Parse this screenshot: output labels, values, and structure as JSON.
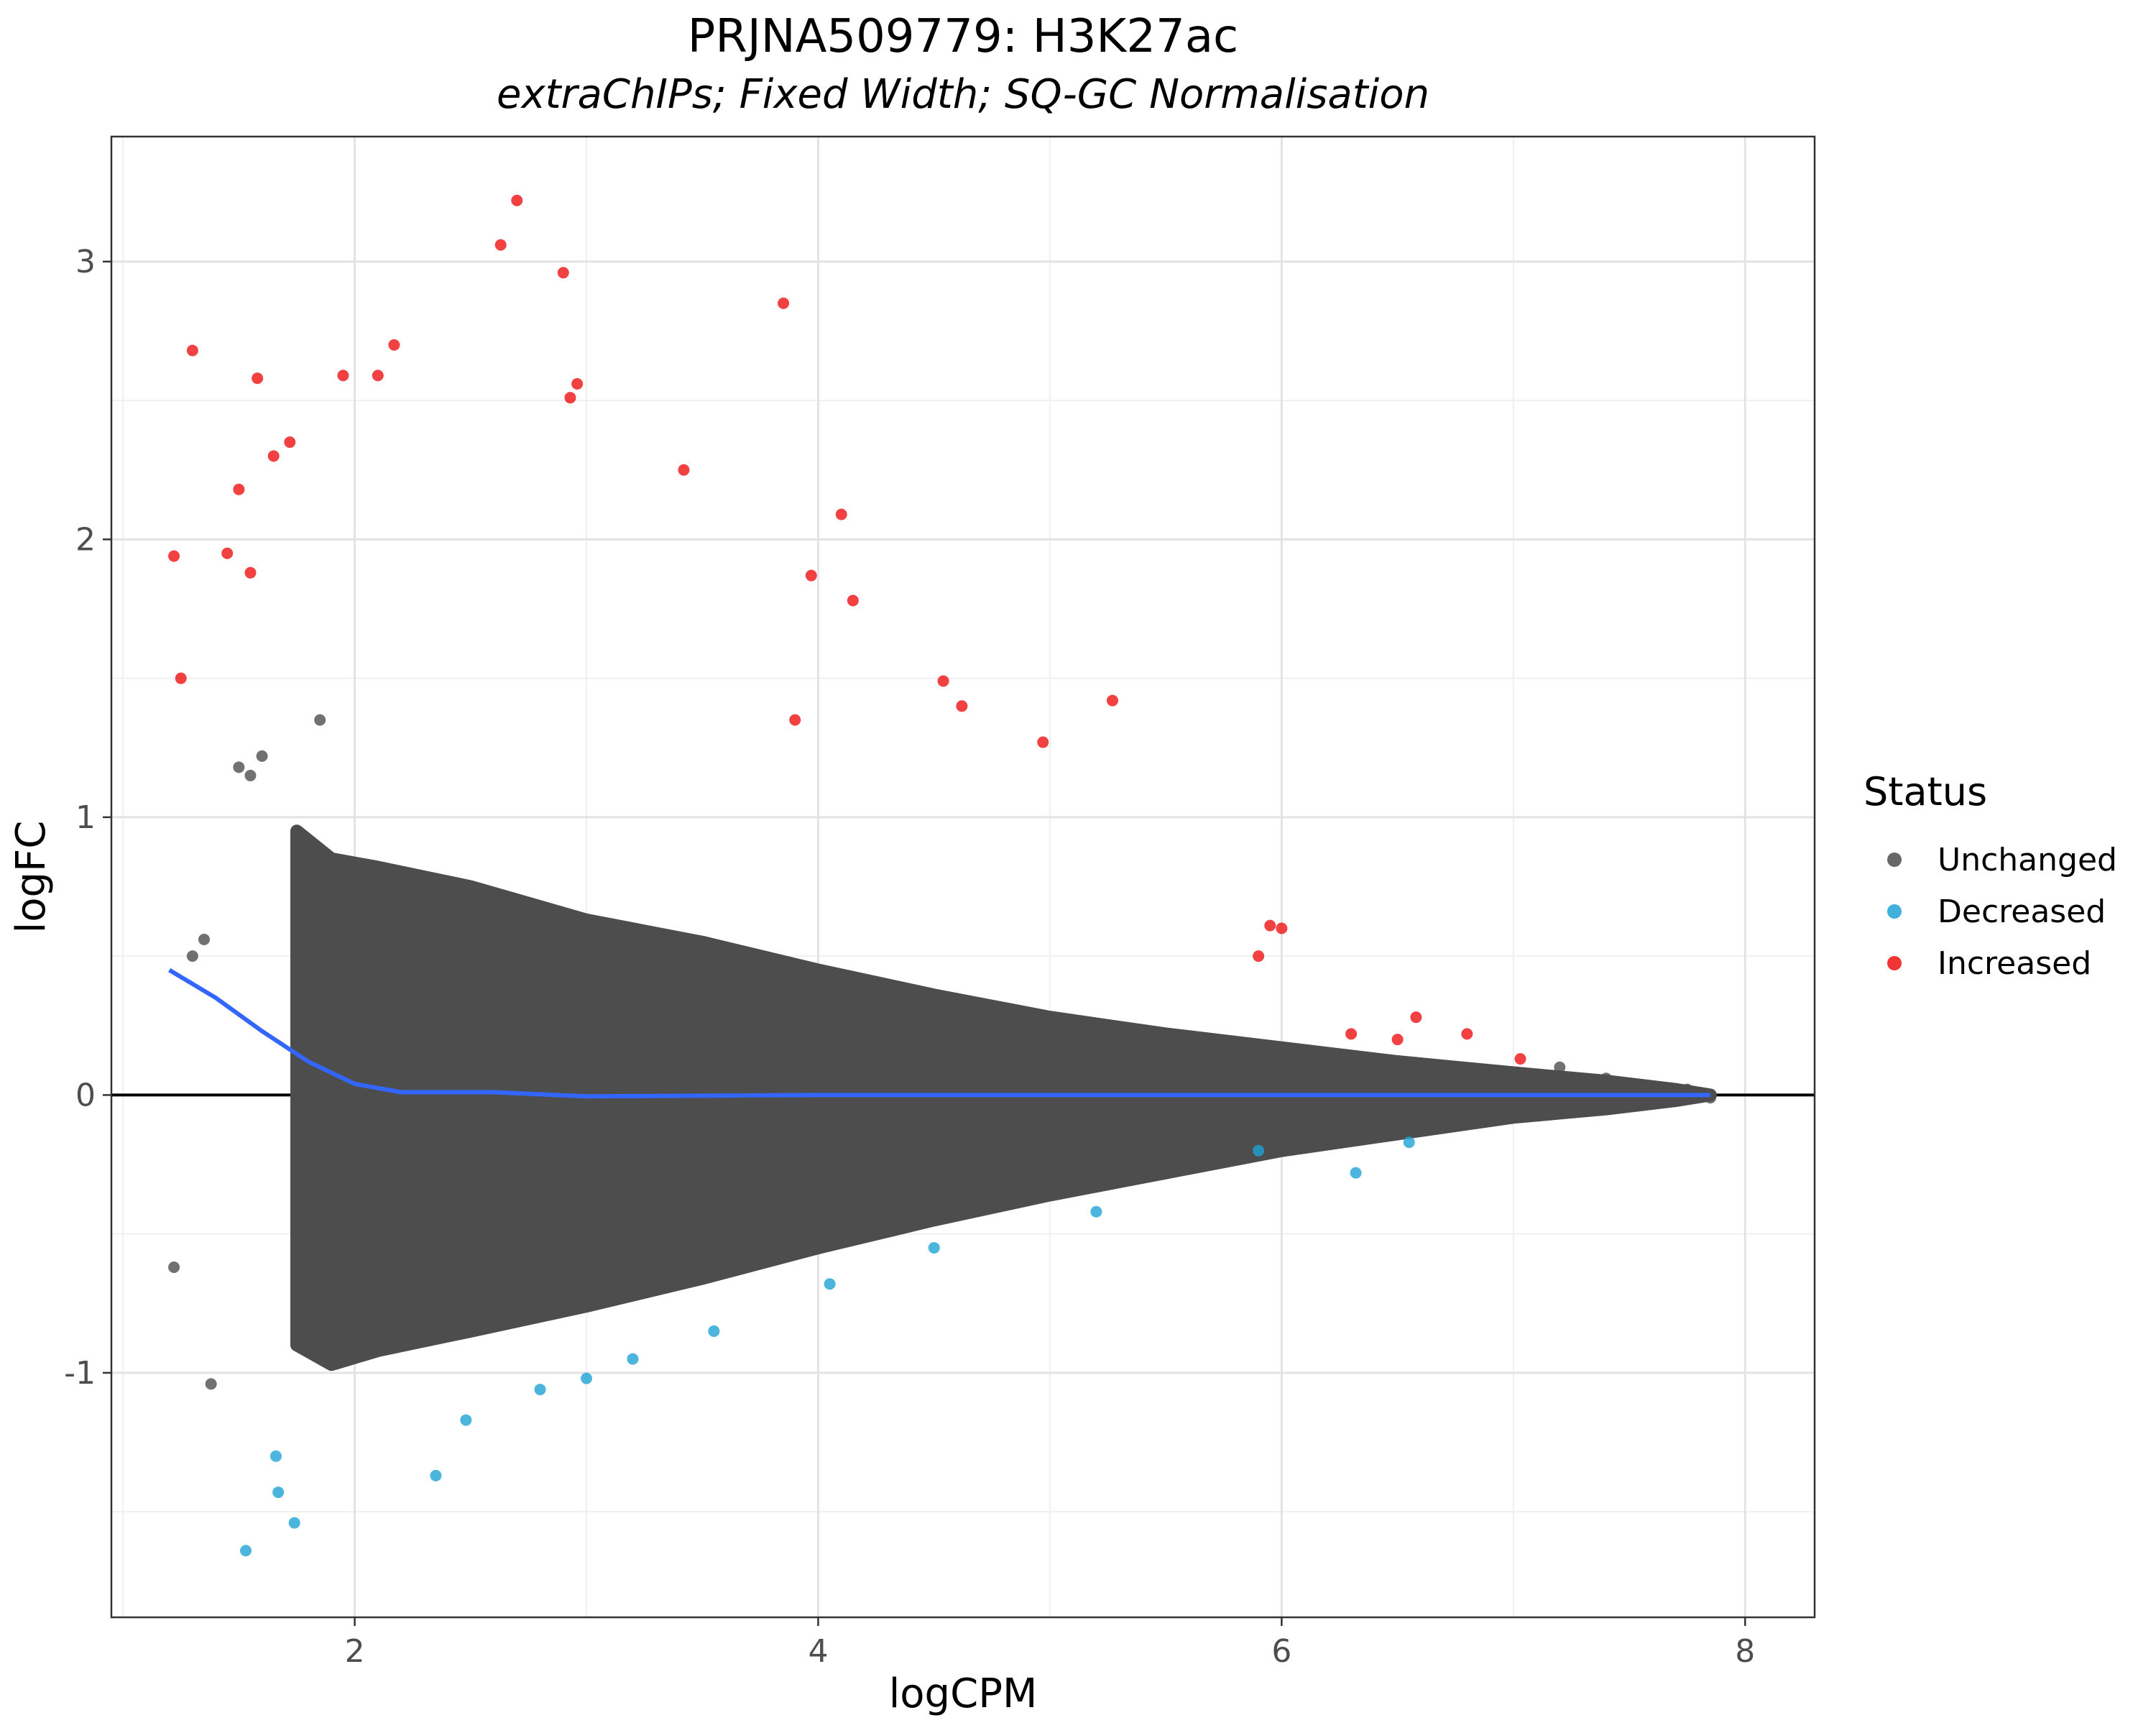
{
  "chart_data": {
    "type": "scatter",
    "title": "PRJNA509779: H3K27ac",
    "subtitle": "extraChIPs; Fixed Width; SQ-GC Normalisation",
    "xlabel": "logCPM",
    "ylabel": "logFC",
    "xlim": [
      0.95,
      8.3
    ],
    "ylim": [
      -1.88,
      3.45
    ],
    "x_ticks": [
      "2",
      "4",
      "6",
      "8"
    ],
    "y_ticks": [
      "-1",
      "0",
      "1",
      "2",
      "3"
    ],
    "x_tick_values": [
      2,
      4,
      6,
      8
    ],
    "y_tick_values": [
      -1,
      0,
      1,
      2,
      3
    ],
    "x_minor_values": [
      1,
      3,
      5,
      7
    ],
    "y_minor_values": [
      -1.5,
      -0.5,
      0.5,
      1.5,
      2.5
    ],
    "grid": true,
    "reference_line_y": 0,
    "legend": {
      "title": "Status",
      "position": "right",
      "entries": [
        "Unchanged",
        "Decreased",
        "Increased"
      ]
    },
    "colors": {
      "Unchanged": "#4d4d4d",
      "Decreased": "#1fa3d6",
      "Increased": "#ee1111",
      "trend": "#3366ff",
      "zero_line": "#000000"
    },
    "series": [
      {
        "name": "Increased",
        "points": [
          [
            1.22,
            1.94
          ],
          [
            1.25,
            1.5
          ],
          [
            1.3,
            2.68
          ],
          [
            1.45,
            1.95
          ],
          [
            1.5,
            2.18
          ],
          [
            1.55,
            1.88
          ],
          [
            1.58,
            2.58
          ],
          [
            1.65,
            2.3
          ],
          [
            1.72,
            2.35
          ],
          [
            1.95,
            2.59
          ],
          [
            2.1,
            2.59
          ],
          [
            2.17,
            2.7
          ],
          [
            2.7,
            3.22
          ],
          [
            2.63,
            3.06
          ],
          [
            2.9,
            2.96
          ],
          [
            3.85,
            2.85
          ],
          [
            2.93,
            2.51
          ],
          [
            2.96,
            2.56
          ],
          [
            3.42,
            2.25
          ],
          [
            4.1,
            2.09
          ],
          [
            4.15,
            1.78
          ],
          [
            3.97,
            1.87
          ],
          [
            5.27,
            1.42
          ],
          [
            4.97,
            1.27
          ],
          [
            4.54,
            1.49
          ],
          [
            4.62,
            1.4
          ],
          [
            3.9,
            1.35
          ],
          [
            6.58,
            0.28
          ],
          [
            6.5,
            0.2
          ],
          [
            6.8,
            0.22
          ],
          [
            7.03,
            0.13
          ],
          [
            6.3,
            0.22
          ],
          [
            6.0,
            0.6
          ],
          [
            5.95,
            0.61
          ],
          [
            5.9,
            0.5
          ]
        ]
      },
      {
        "name": "Decreased",
        "points": [
          [
            1.53,
            -1.64
          ],
          [
            1.66,
            -1.3
          ],
          [
            1.74,
            -1.54
          ],
          [
            1.67,
            -1.43
          ],
          [
            2.35,
            -1.37
          ],
          [
            2.48,
            -1.17
          ],
          [
            2.8,
            -1.06
          ],
          [
            3.0,
            -1.02
          ],
          [
            3.2,
            -0.95
          ],
          [
            3.55,
            -0.85
          ],
          [
            4.05,
            -0.68
          ],
          [
            4.5,
            -0.55
          ],
          [
            5.2,
            -0.42
          ],
          [
            5.9,
            -0.2
          ],
          [
            6.32,
            -0.28
          ],
          [
            6.55,
            -0.17
          ]
        ]
      },
      {
        "name": "Unchanged",
        "points": [
          [
            1.38,
            -1.04
          ],
          [
            1.22,
            -0.62
          ],
          [
            1.3,
            0.5
          ],
          [
            1.35,
            0.56
          ],
          [
            1.5,
            1.18
          ],
          [
            1.55,
            1.15
          ],
          [
            1.6,
            1.22
          ],
          [
            1.85,
            1.35
          ],
          [
            7.82,
            0.0
          ],
          [
            7.85,
            -0.01
          ],
          [
            7.75,
            0.02
          ],
          [
            7.6,
            0.03
          ],
          [
            7.4,
            0.06
          ],
          [
            7.2,
            0.1
          ]
        ]
      }
    ],
    "trend_line": {
      "name": "loess",
      "points": [
        [
          1.2,
          0.45
        ],
        [
          1.4,
          0.35
        ],
        [
          1.6,
          0.23
        ],
        [
          1.8,
          0.12
        ],
        [
          2.0,
          0.04
        ],
        [
          2.2,
          0.01
        ],
        [
          2.6,
          0.01
        ],
        [
          3.0,
          -0.005
        ],
        [
          4.0,
          0.0
        ],
        [
          6.0,
          0.0
        ],
        [
          7.85,
          0.0
        ]
      ]
    }
  }
}
